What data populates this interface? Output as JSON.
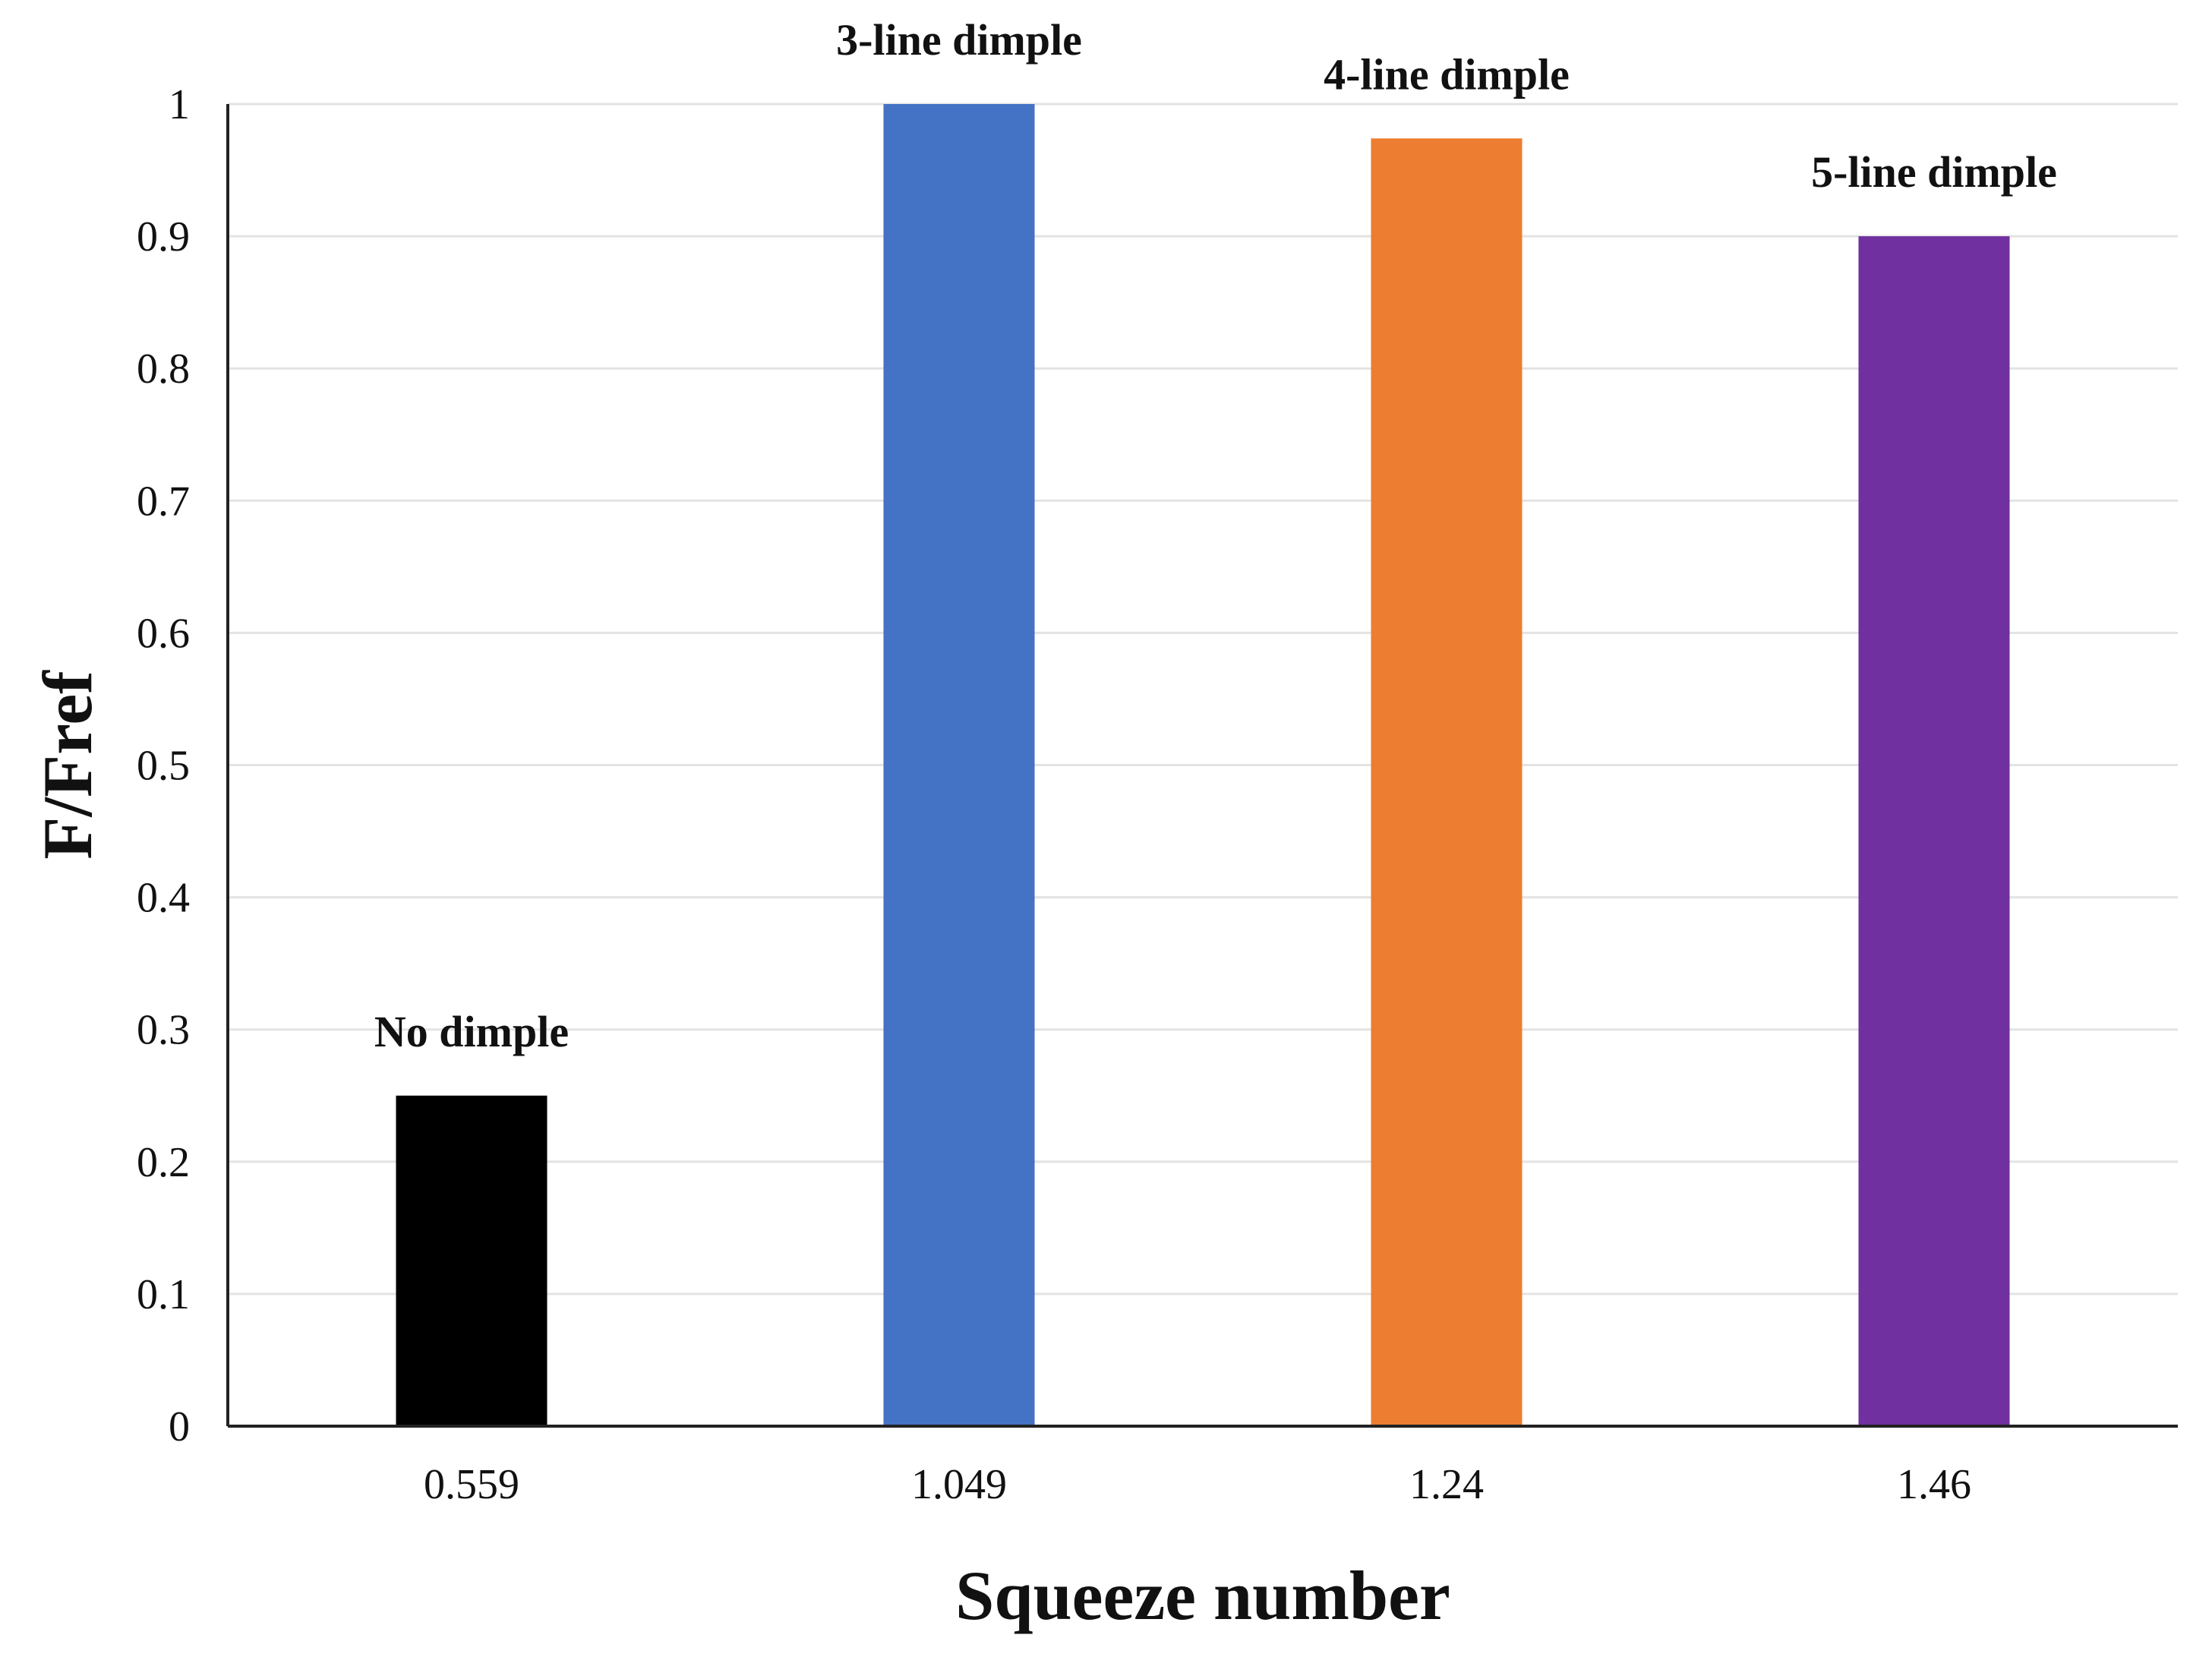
{
  "chart_data": {
    "type": "bar",
    "title": "",
    "xlabel": "Squeeze number",
    "ylabel": "F/Fref",
    "ylim": [
      0,
      1
    ],
    "ytick_step": 0.1,
    "ytick_labels": [
      "0",
      "0.1",
      "0.2",
      "0.3",
      "0.4",
      "0.5",
      "0.6",
      "0.7",
      "0.8",
      "0.9",
      "1"
    ],
    "grid": true,
    "categories": [
      "0.559",
      "1.049",
      "1.24",
      "1.46"
    ],
    "values": [
      0.25,
      1.0,
      0.974,
      0.9
    ],
    "bar_labels": [
      "No dimple",
      "3-line dimple",
      "4-line dimple",
      "5-line dimple"
    ],
    "colors": [
      "#000000",
      "#4472C4",
      "#ED7D31",
      "#7030A0"
    ]
  }
}
